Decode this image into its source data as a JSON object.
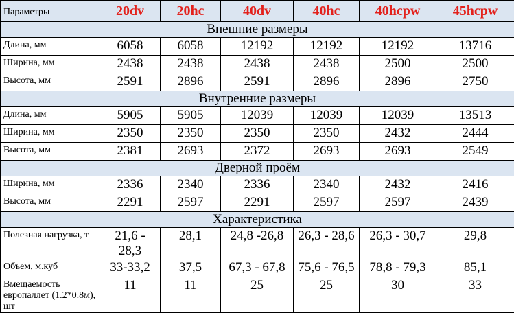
{
  "table": {
    "header": {
      "label": "Параметры",
      "columns": [
        "20dv",
        "20hc",
        "40dv",
        "40hc",
        "40hcpw",
        "45hcpw"
      ]
    },
    "sections": [
      {
        "title": "Внешние размеры",
        "rows": [
          {
            "label": "Длина, мм",
            "values": [
              "6058",
              "6058",
              "12192",
              "12192",
              "12192",
              "13716"
            ]
          },
          {
            "label": "Ширина, мм",
            "values": [
              "2438",
              "2438",
              "2438",
              "2438",
              "2500",
              "2500"
            ]
          },
          {
            "label": "Высота, мм",
            "values": [
              "2591",
              "2896",
              "2591",
              "2896",
              "2896",
              "2750"
            ]
          }
        ]
      },
      {
        "title": "Внутренние размеры",
        "rows": [
          {
            "label": "Длина, мм",
            "values": [
              "5905",
              "5905",
              "12039",
              "12039",
              "12039",
              "13513"
            ]
          },
          {
            "label": "Ширина, мм",
            "values": [
              "2350",
              "2350",
              "2350",
              "2350",
              "2432",
              "2444"
            ]
          },
          {
            "label": "Высота, мм",
            "values": [
              "2381",
              "2693",
              "2372",
              "2693",
              "2693",
              "2549"
            ]
          }
        ]
      },
      {
        "title": "Дверной проём",
        "rows": [
          {
            "label": "Ширина, мм",
            "values": [
              "2336",
              "2340",
              "2336",
              "2340",
              "2432",
              "2416"
            ]
          },
          {
            "label": "Высота, мм",
            "values": [
              "2291",
              "2597",
              "2291",
              "2597",
              "2597",
              "2439"
            ]
          }
        ]
      },
      {
        "title": "Характеристика",
        "rows": [
          {
            "label": "Полезная нагрузка, т",
            "values": [
              "21,6 - 28,3",
              "28,1",
              "24,8 -26,8",
              "26,3 - 28,6",
              "26,3 - 30,7",
              "29,8"
            ]
          },
          {
            "label": "Объем, м.куб",
            "values": [
              "33-33,2",
              "37,5",
              "67,3 - 67,8",
              "75,6 - 76,5",
              "78,8 - 79,3",
              "85,1"
            ]
          },
          {
            "label": "Вмещаемость европаллет (1.2*0.8м), шт",
            "values": [
              "11",
              "11",
              "25",
              "25",
              "30",
              "33"
            ]
          }
        ]
      }
    ]
  }
}
